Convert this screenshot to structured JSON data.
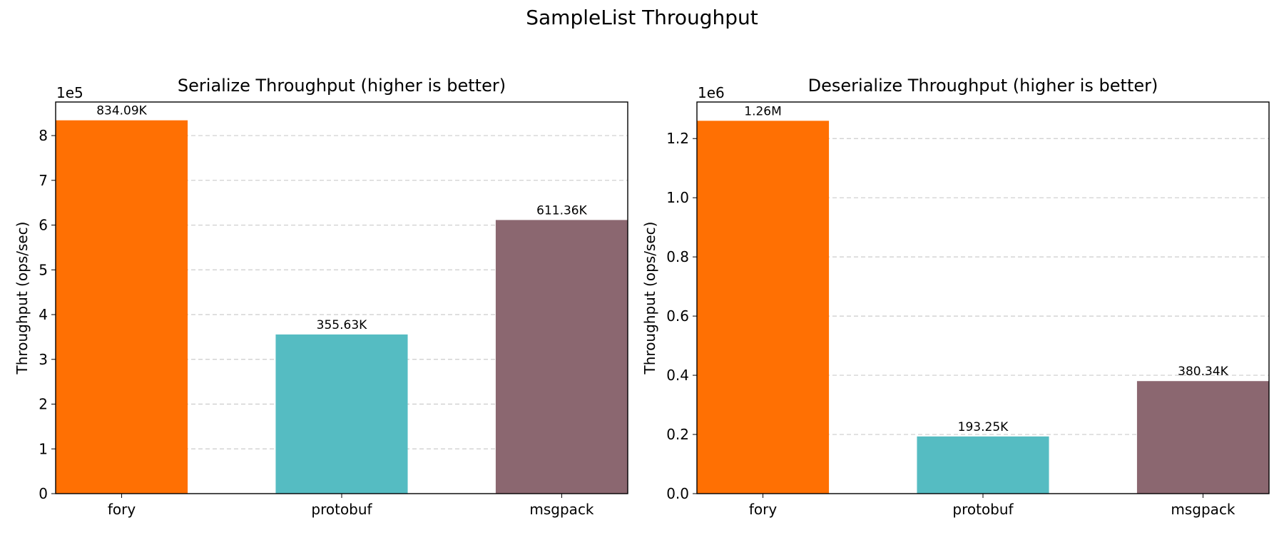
{
  "figure": {
    "title": "SampleList Throughput"
  },
  "colors": {
    "fory": "#ff7003",
    "protobuf": "#55bcc2",
    "msgpack": "#8b6770",
    "grid": "#cccccc"
  },
  "chart_data": [
    {
      "type": "bar",
      "title": "Serialize Throughput (higher is better)",
      "ylabel": "Throughput (ops/sec)",
      "xlabel": "",
      "offset_label": "1e5",
      "categories": [
        "fory",
        "protobuf",
        "msgpack"
      ],
      "values": [
        834090,
        355630,
        611360
      ],
      "value_labels": [
        "834.09K",
        "355.63K",
        "611.36K"
      ],
      "ylim": [
        0,
        8.75
      ],
      "y_scale": 100000,
      "yticks": [
        "0",
        "1",
        "2",
        "3",
        "4",
        "5",
        "6",
        "7",
        "8"
      ],
      "grid": "horizontal dashed"
    },
    {
      "type": "bar",
      "title": "Deserialize Throughput (higher is better)",
      "ylabel": "Throughput (ops/sec)",
      "xlabel": "",
      "offset_label": "1e6",
      "categories": [
        "fory",
        "protobuf",
        "msgpack"
      ],
      "values": [
        1260000,
        193250,
        380340
      ],
      "value_labels": [
        "1.26M",
        "193.25K",
        "380.34K"
      ],
      "ylim": [
        0,
        1.3235
      ],
      "y_scale": 1000000,
      "yticks": [
        "0.0",
        "0.2",
        "0.4",
        "0.6",
        "0.8",
        "1.0",
        "1.2"
      ],
      "grid": "horizontal dashed"
    }
  ]
}
